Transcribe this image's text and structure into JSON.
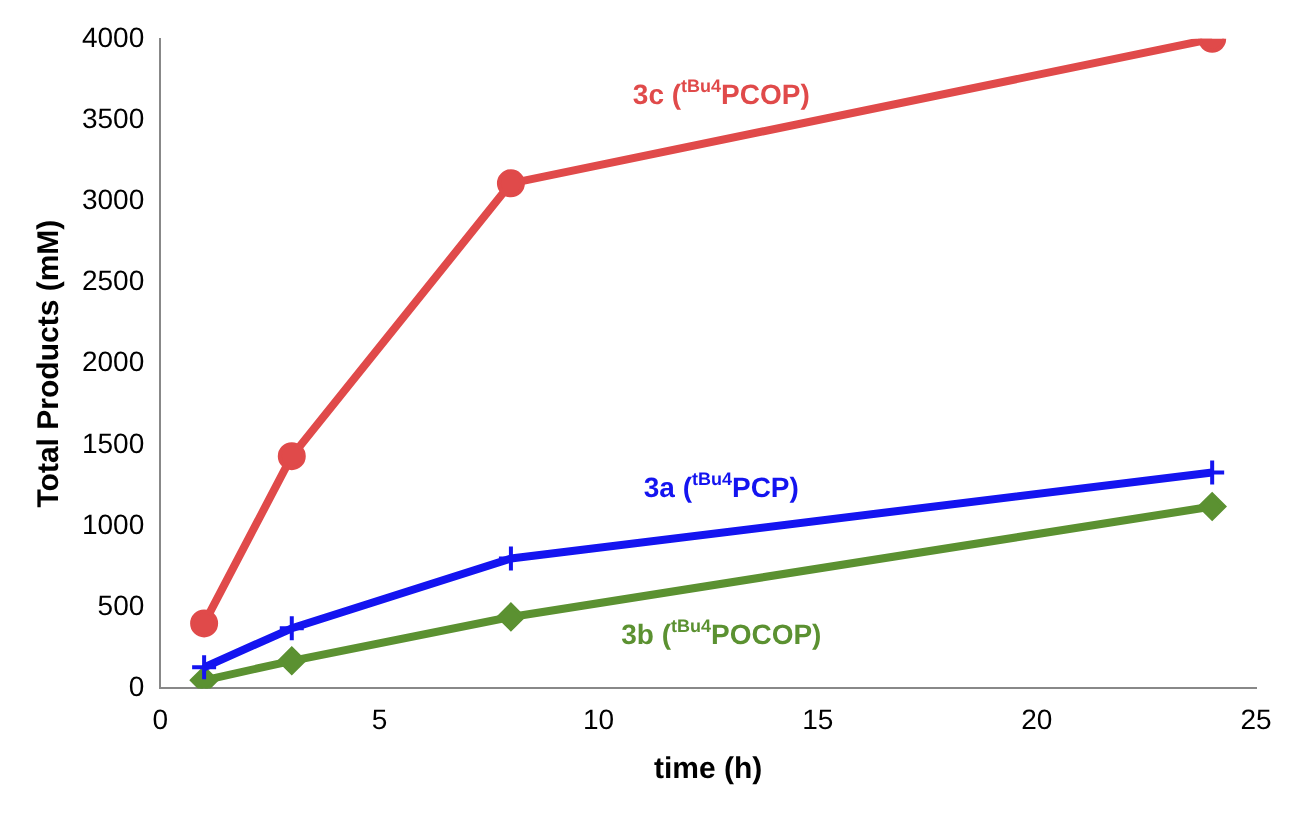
{
  "chart_data": {
    "type": "line",
    "xlabel": "time (h)",
    "ylabel": "Total Products (mM)",
    "xlim": [
      0,
      25
    ],
    "xticks": [
      0,
      5,
      10,
      15,
      20,
      25
    ],
    "ylim": [
      0,
      4000
    ],
    "yticks": [
      0,
      500,
      1000,
      1500,
      2000,
      2500,
      3000,
      3500,
      4000
    ],
    "grid": false,
    "legend": false,
    "line_style": "solid",
    "x": [
      1,
      3,
      8,
      24
    ],
    "series": [
      {
        "name": "3c ($^{tBu4}$PCOP)",
        "color": "#e04a4a",
        "marker": "circle",
        "values": [
          400,
          1430,
          3110,
          4000
        ]
      },
      {
        "name": "3a ($^{tBu4}$PCP)",
        "color": "#1414f0",
        "marker": "cross",
        "values": [
          130,
          370,
          800,
          1330
        ]
      },
      {
        "name": "3b ($^{tBu4}$POCOP)",
        "color": "#5b9131",
        "marker": "diamond",
        "values": [
          50,
          170,
          440,
          1120
        ]
      }
    ]
  }
}
